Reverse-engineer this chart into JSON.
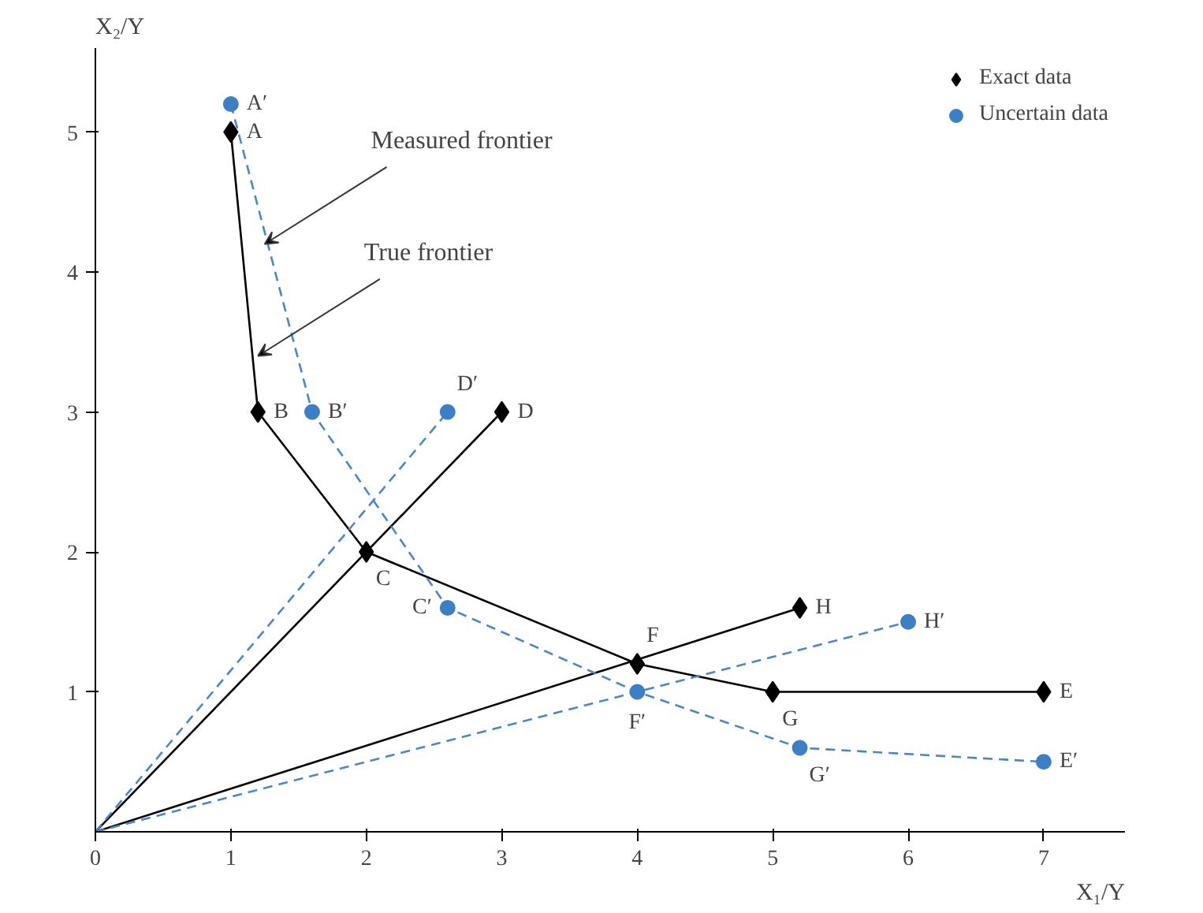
{
  "chart_data": {
    "type": "line",
    "xlabel": "X₁/Y",
    "ylabel": "X₂/Y",
    "xlim": [
      0,
      7.6
    ],
    "ylim": [
      0,
      5.6
    ],
    "xticks": [
      0,
      1,
      2,
      3,
      4,
      5,
      6,
      7
    ],
    "yticks": [
      1,
      2,
      3,
      4,
      5
    ],
    "grid": false,
    "legend": "top right",
    "series": [
      {
        "color": "#000000",
        "line_style": "solid",
        "marker": "none",
        "x": [
          1,
          1.2,
          2,
          4,
          5,
          7
        ],
        "values": [
          5,
          3,
          2,
          1.2,
          1,
          1
        ]
      },
      {
        "color": "#000000",
        "line_style": "solid",
        "marker": "none",
        "x": [
          0,
          3
        ],
        "values": [
          0,
          3
        ]
      },
      {
        "color": "#000000",
        "line_style": "solid",
        "marker": "none",
        "x": [
          0,
          5.2
        ],
        "values": [
          0,
          1.6
        ]
      },
      {
        "color": "#4a86c8",
        "line_style": "dashed",
        "marker": "none",
        "x": [
          1,
          1.6,
          2.6,
          4,
          5.2,
          7
        ],
        "values": [
          5.2,
          3,
          1.6,
          1,
          0.6,
          0.5
        ]
      },
      {
        "color": "#4a86c8",
        "line_style": "dashed",
        "marker": "none",
        "x": [
          0,
          2.6
        ],
        "values": [
          0,
          3
        ]
      },
      {
        "color": "#4a86c8",
        "line_style": "dashed",
        "marker": "none",
        "x": [
          0,
          6
        ],
        "values": [
          0,
          1.5
        ]
      },
      {
        "name": "Exact data",
        "type": "scatter",
        "color": "#000000",
        "marker": "diamond",
        "x": [
          1,
          1.2,
          2,
          3,
          4,
          5,
          7,
          5.2
        ],
        "values": [
          5,
          3,
          2,
          3,
          1.2,
          1,
          1,
          1.6
        ]
      },
      {
        "name": "Uncertain data",
        "type": "scatter",
        "color": "#3d7fc4",
        "marker": "circle",
        "x": [
          1,
          1.6,
          2.6,
          2.6,
          4,
          5.2,
          7,
          6
        ],
        "values": [
          5.2,
          3,
          1.6,
          3,
          1,
          0.6,
          0.5,
          1.5
        ]
      }
    ],
    "annotations": [
      {
        "text": "A",
        "x": 1,
        "y": 5
      },
      {
        "text": "B",
        "x": 1.2,
        "y": 3
      },
      {
        "text": "C",
        "x": 2,
        "y": 2
      },
      {
        "text": "D",
        "x": 3,
        "y": 3
      },
      {
        "text": "F",
        "x": 4,
        "y": 1.2
      },
      {
        "text": "G",
        "x": 5,
        "y": 1
      },
      {
        "text": "E",
        "x": 7,
        "y": 1
      },
      {
        "text": "H",
        "x": 5.2,
        "y": 1.6
      },
      {
        "text": "A′",
        "x": 1,
        "y": 5.2
      },
      {
        "text": "B′",
        "x": 1.6,
        "y": 3
      },
      {
        "text": "C′",
        "x": 2.6,
        "y": 1.6
      },
      {
        "text": "D′",
        "x": 2.6,
        "y": 3
      },
      {
        "text": "F′",
        "x": 4,
        "y": 1
      },
      {
        "text": "G′",
        "x": 5.2,
        "y": 0.6
      },
      {
        "text": "E′",
        "x": 7,
        "y": 0.5
      },
      {
        "text": "H′",
        "x": 6,
        "y": 1.5
      },
      {
        "text": "Measured frontier",
        "x": 1.25,
        "y": 4.2
      },
      {
        "text": "True frontier",
        "x": 1.2,
        "y": 3.4
      }
    ]
  }
}
